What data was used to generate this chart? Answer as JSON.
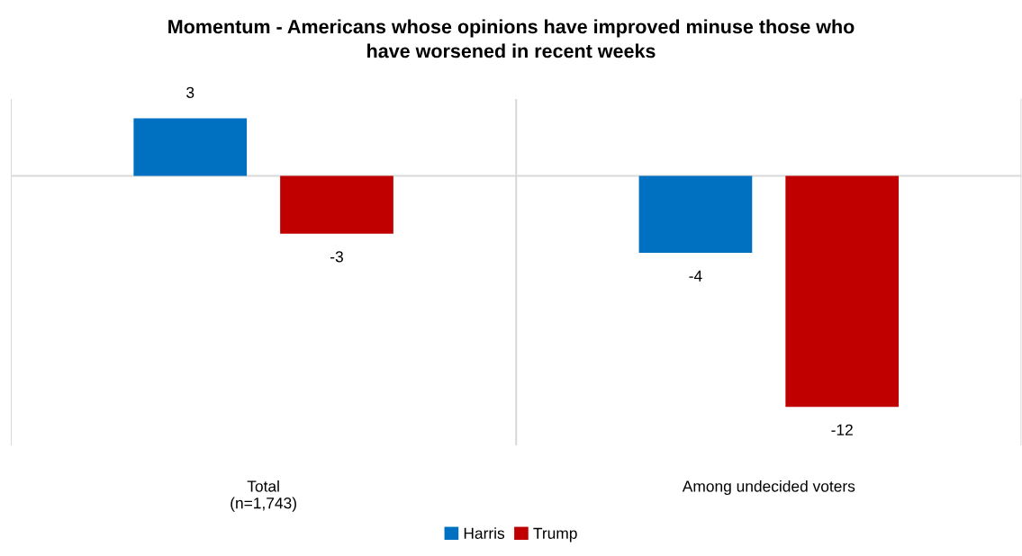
{
  "chart_data": {
    "type": "bar",
    "title": "Momentum - Americans whose opinions have improved minuse those who\nhave worsened in recent weeks",
    "categories": [
      "Total\n(n=1,743)",
      "Among undecided voters"
    ],
    "series": [
      {
        "name": "Harris",
        "color": "#0070c0",
        "values": [
          3,
          -4
        ]
      },
      {
        "name": "Trump",
        "color": "#c00000",
        "values": [
          -3,
          -12
        ]
      }
    ],
    "ylim": [
      -14,
      4
    ],
    "data_labels": true,
    "grid": "x",
    "legend": "bottom",
    "tick_labels": "x"
  }
}
